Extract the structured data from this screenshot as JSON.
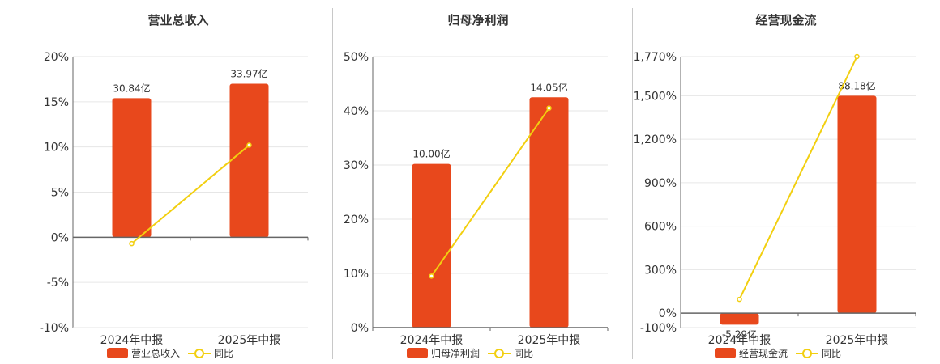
{
  "colors": {
    "bar": "#E8481C",
    "line": "#F2CF10",
    "axis": "#666666",
    "grid": "#e6e6e6"
  },
  "chart_data": [
    {
      "type": "bar",
      "title": "营业总收入",
      "categories": [
        "2024年中报",
        "2025年中报"
      ],
      "ylim": [
        -10,
        20
      ],
      "yticks": [
        -10,
        -5,
        0,
        5,
        10,
        15,
        20
      ],
      "ytick_labels": [
        "-10%",
        "-5%",
        "0%",
        "5%",
        "10%",
        "15%",
        "20%"
      ],
      "series": [
        {
          "name": "营业总收入",
          "kind": "bar",
          "values": [
            15.4,
            17.0
          ],
          "labels": [
            "30.84亿",
            "33.97亿"
          ]
        },
        {
          "name": "同比",
          "kind": "line",
          "values": [
            -0.7,
            10.2
          ]
        }
      ],
      "legend": "bottom",
      "grid": true
    },
    {
      "type": "bar",
      "title": "归母净利润",
      "categories": [
        "2024年中报",
        "2025年中报"
      ],
      "ylim": [
        0,
        50
      ],
      "yticks": [
        0,
        10,
        20,
        30,
        40,
        50
      ],
      "ytick_labels": [
        "0%",
        "10%",
        "20%",
        "30%",
        "40%",
        "50%"
      ],
      "series": [
        {
          "name": "归母净利润",
          "kind": "bar",
          "values": [
            30.2,
            42.5
          ],
          "labels": [
            "10.00亿",
            "14.05亿"
          ]
        },
        {
          "name": "同比",
          "kind": "line",
          "values": [
            9.5,
            40.5
          ]
        }
      ],
      "legend": "bottom",
      "grid": true
    },
    {
      "type": "bar",
      "title": "经营现金流",
      "categories": [
        "2024年中报",
        "2025年中报"
      ],
      "ylim": [
        -100,
        1770
      ],
      "yticks": [
        -100,
        0,
        300,
        600,
        900,
        1200,
        1500,
        1770
      ],
      "ytick_labels": [
        "-100%",
        "0%",
        "300%",
        "600%",
        "900%",
        "1,200%",
        "1,500%",
        "1,770%"
      ],
      "series": [
        {
          "name": "经营现金流",
          "kind": "bar",
          "values": [
            -80,
            1500
          ],
          "labels": [
            "-5.29亿",
            "88.18亿"
          ]
        },
        {
          "name": "同比",
          "kind": "line",
          "values": [
            95,
            1770
          ]
        }
      ],
      "legend": "bottom",
      "grid": true
    }
  ]
}
